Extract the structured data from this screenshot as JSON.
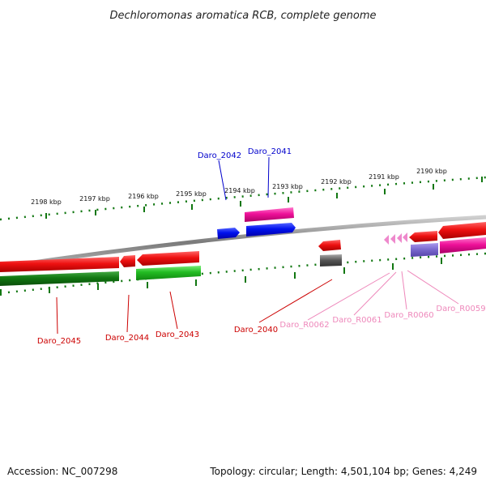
{
  "title": "Dechloromonas aromatica RCB, complete genome",
  "ticks": [
    "2198 kbp",
    "2197 kbp",
    "2196 kbp",
    "2195 kbp",
    "2194 kbp",
    "2193 kbp",
    "2192 kbp",
    "2191 kbp",
    "2190 kbp"
  ],
  "genes": {
    "daro_2042": "Daro_2042",
    "daro_2041": "Daro_2041",
    "daro_2045": "Daro_2045",
    "daro_2044": "Daro_2044",
    "daro_2043": "Daro_2043",
    "daro_2040": "Daro_2040",
    "daro_r0062": "Daro_R0062",
    "daro_r0061": "Daro_R0061",
    "daro_r0060": "Daro_R0060",
    "daro_r0059": "Daro_R0059"
  },
  "footer": {
    "accession": "Accession: NC_007298",
    "topology": "Topology: circular; Length: 4,501,104 bp; Genes: 4,249"
  },
  "colors": {
    "cds_red": "#ee1111",
    "cds_blue": "#0011ee",
    "cds_magenta": "#ee1199",
    "cds_green": "#22bb22",
    "cds_darkgreen": "#117711",
    "trna_pink": "#ee88cc",
    "label_red": "#cc0000",
    "label_blue": "#0000cc",
    "label_pink": "#ee88bb",
    "tick_green": "#117711",
    "backbone_gray": "#8a8a8a",
    "pseudo_gray": "#555555",
    "purple": "#7766cc"
  }
}
